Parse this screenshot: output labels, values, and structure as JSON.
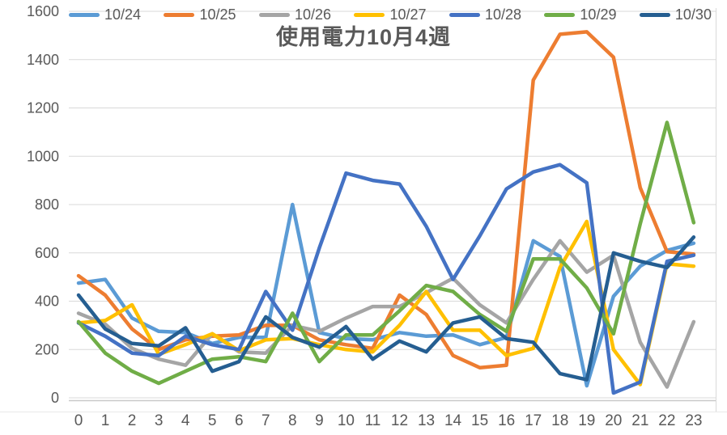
{
  "title": "使用電力10月4週",
  "axis": {
    "text_color": "#595959",
    "grid_color": "#D9D9D9",
    "axis_line_color": "#C9C9C9",
    "y_tick_labels": [
      "0",
      "200",
      "400",
      "600",
      "800",
      "1000",
      "1200",
      "1400",
      "1600"
    ],
    "x_tick_labels": [
      "0",
      "1",
      "2",
      "3",
      "4",
      "5",
      "6",
      "7",
      "8",
      "9",
      "10",
      "11",
      "12",
      "13",
      "14",
      "15",
      "16",
      "17",
      "18",
      "19",
      "20",
      "21",
      "22",
      "23"
    ]
  },
  "chart_data": {
    "type": "line",
    "title": "使用電力10月4週",
    "xlabel": "",
    "ylabel": "",
    "ylim": [
      0,
      1600
    ],
    "ytick_step": 200,
    "grid": "horizontal",
    "legend_position": "top",
    "x": [
      0,
      1,
      2,
      3,
      4,
      5,
      6,
      7,
      8,
      9,
      10,
      11,
      12,
      13,
      14,
      15,
      16,
      17,
      18,
      19,
      20,
      21,
      22,
      23
    ],
    "series": [
      {
        "name": "10/24",
        "color": "#5B9BD5",
        "values": [
          475,
          490,
          330,
          275,
          270,
          225,
          250,
          250,
          800,
          270,
          245,
          240,
          270,
          255,
          260,
          220,
          250,
          650,
          585,
          50,
          420,
          545,
          610,
          640
        ]
      },
      {
        "name": "10/25",
        "color": "#ED7D31",
        "values": [
          505,
          425,
          285,
          200,
          240,
          255,
          260,
          300,
          300,
          240,
          220,
          205,
          425,
          345,
          175,
          125,
          135,
          1315,
          1505,
          1515,
          1410,
          870,
          605,
          595
        ]
      },
      {
        "name": "10/26",
        "color": "#A5A5A5",
        "values": [
          350,
          305,
          205,
          160,
          135,
          265,
          190,
          185,
          300,
          275,
          330,
          378,
          378,
          435,
          495,
          385,
          310,
          490,
          650,
          520,
          590,
          230,
          45,
          315
        ]
      },
      {
        "name": "10/27",
        "color": "#FFC000",
        "values": [
          310,
          320,
          385,
          180,
          220,
          265,
          195,
          240,
          245,
          220,
          200,
          190,
          300,
          440,
          280,
          280,
          175,
          205,
          540,
          730,
          200,
          55,
          555,
          545
        ]
      },
      {
        "name": "10/28",
        "color": "#4472C4",
        "values": [
          310,
          255,
          185,
          175,
          255,
          220,
          200,
          440,
          280,
          620,
          930,
          900,
          885,
          710,
          490,
          670,
          865,
          935,
          965,
          890,
          20,
          65,
          565,
          590
        ]
      },
      {
        "name": "10/29",
        "color": "#70AD47",
        "values": [
          315,
          185,
          110,
          60,
          110,
          160,
          170,
          150,
          350,
          150,
          260,
          260,
          360,
          465,
          440,
          345,
          275,
          575,
          575,
          455,
          265,
          720,
          1140,
          725
        ]
      },
      {
        "name": "10/30",
        "color": "#255E91",
        "values": [
          425,
          285,
          225,
          215,
          290,
          110,
          150,
          335,
          250,
          210,
          295,
          160,
          235,
          190,
          310,
          335,
          245,
          230,
          100,
          75,
          600,
          565,
          540,
          665
        ]
      }
    ]
  }
}
